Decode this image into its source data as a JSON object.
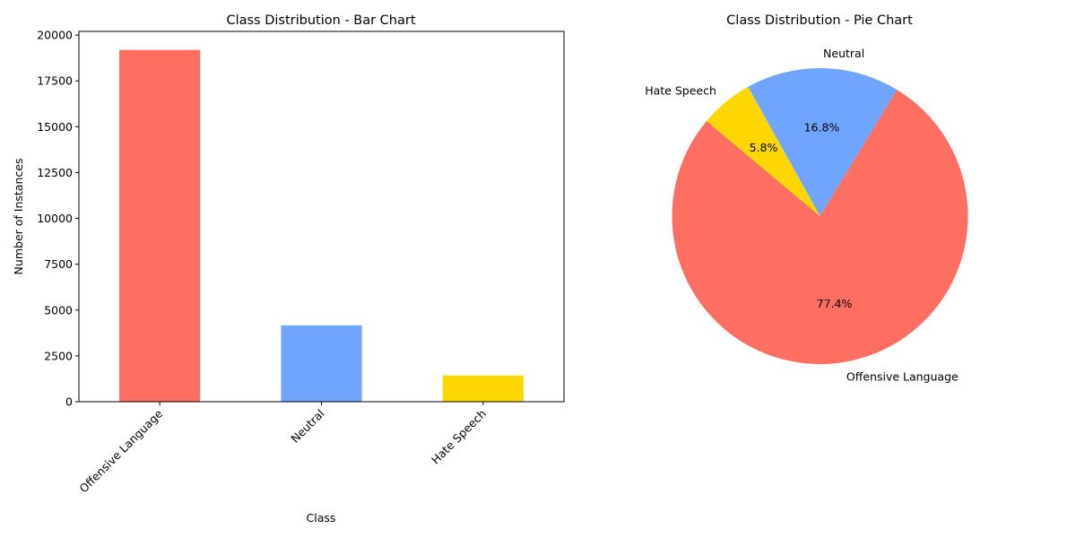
{
  "chart_data": [
    {
      "type": "bar",
      "title": "Class Distribution - Bar Chart",
      "xlabel": "Class",
      "ylabel": "Number of Instances",
      "categories": [
        "Offensive Language",
        "Neutral",
        "Hate Speech"
      ],
      "values": [
        19190,
        4163,
        1430
      ],
      "colors": [
        "#ff6f61",
        "#6fa5ff",
        "#ffd700"
      ],
      "ylim": [
        0,
        20200
      ],
      "yticks": [
        0,
        2500,
        5000,
        7500,
        10000,
        12500,
        15000,
        17500,
        20000
      ],
      "ytick_labels": [
        "0",
        "2500",
        "5000",
        "7500",
        "10000",
        "12500",
        "15000",
        "17500",
        "20000"
      ],
      "xtick_rotation": 45,
      "grid": false,
      "legend": "none"
    },
    {
      "type": "pie",
      "title": "Class Distribution - Pie Chart",
      "labels": [
        "Offensive Language",
        "Neutral",
        "Hate Speech"
      ],
      "values": [
        77.4,
        16.8,
        5.8
      ],
      "pct_labels": [
        "77.4%",
        "16.8%",
        "5.8%"
      ],
      "colors": [
        "#ff6f61",
        "#6fa5ff",
        "#ffd700"
      ],
      "start_angle_deg": 140,
      "legend": "none"
    }
  ]
}
